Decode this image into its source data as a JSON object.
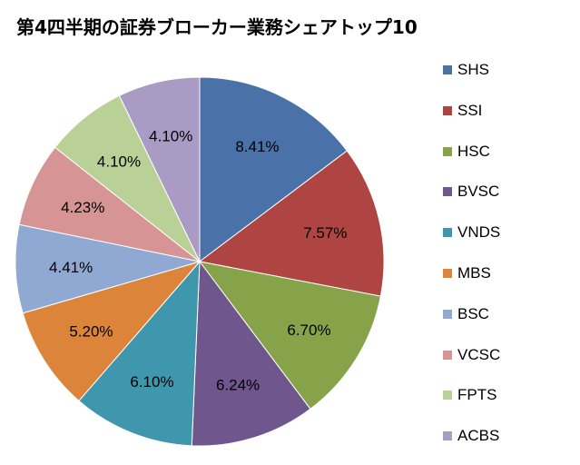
{
  "chart_data": {
    "type": "pie",
    "title": "第4四半期の証券ブローカー業務シェアトップ10",
    "legend_position": "right",
    "slices": [
      {
        "name": "SHS",
        "value": 8.41,
        "label": "8.41%",
        "color": "#4a72a8"
      },
      {
        "name": "SSI",
        "value": 7.57,
        "label": "7.57%",
        "color": "#ae4543"
      },
      {
        "name": "HSC",
        "value": 6.7,
        "label": "6.70%",
        "color": "#87a34a"
      },
      {
        "name": "BVSC",
        "value": 6.24,
        "label": "6.24%",
        "color": "#6f568c"
      },
      {
        "name": "VNDS",
        "value": 6.1,
        "label": "6.10%",
        "color": "#3f97ad"
      },
      {
        "name": "MBS",
        "value": 5.2,
        "label": "5.20%",
        "color": "#dc853a"
      },
      {
        "name": "BSC",
        "value": 4.41,
        "label": "4.41%",
        "color": "#90a9d3"
      },
      {
        "name": "VCSC",
        "value": 4.23,
        "label": "4.23%",
        "color": "#d69594"
      },
      {
        "name": "FPTS",
        "value": 4.1,
        "label": "4.10%",
        "color": "#b9d197"
      },
      {
        "name": "ACBS",
        "value": 4.1,
        "label": "4.10%",
        "color": "#a99bc3"
      }
    ]
  }
}
